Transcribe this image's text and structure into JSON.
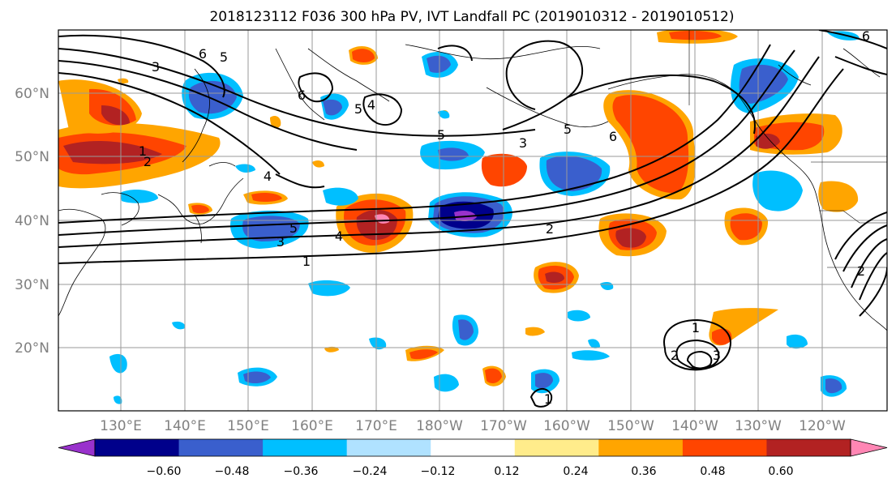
{
  "title": "2018123112 F036 300 hPa PV, IVT Landfall PC (2019010312 - 2019010512)",
  "map": {
    "lat_labels": [
      "60°N",
      "50°N",
      "40°N",
      "30°N",
      "20°N"
    ],
    "lon_labels": [
      "130°E",
      "140°E",
      "150°E",
      "160°E",
      "170°E",
      "180°W",
      "170°W",
      "160°W",
      "150°W",
      "140°W",
      "130°W",
      "120°W"
    ],
    "contour_labels": [
      "1",
      "2",
      "3",
      "4",
      "5",
      "6",
      "5",
      "4",
      "3",
      "2",
      "1",
      "3",
      "5",
      "6",
      "1",
      "2",
      "3",
      "1",
      "5",
      "6",
      "5",
      "4",
      "6",
      "2"
    ]
  },
  "colorbar": {
    "ticks": [
      "−0.60",
      "−0.48",
      "−0.36",
      "−0.24",
      "−0.12",
      "0.12",
      "0.24",
      "0.36",
      "0.48",
      "0.60"
    ],
    "colors": [
      "#9932cc",
      "#00008b",
      "#3a5fcd",
      "#00bfff",
      "#b0e2ff",
      "#ffffff",
      "#ffec8b",
      "#ffa500",
      "#ff4500",
      "#b22222",
      "#ff86b4"
    ]
  }
}
